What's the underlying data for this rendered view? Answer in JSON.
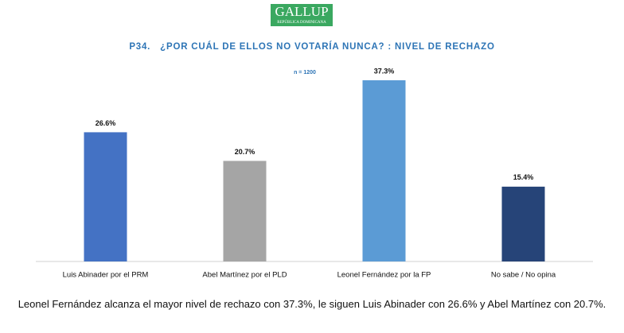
{
  "header": {
    "logo": "GALLUP",
    "logo_subtitle": "REPÚBLICA DOMINICANA"
  },
  "chart_data": {
    "type": "bar",
    "title": "P34.   ¿POR CUÁL DE ELLOS NO VOTARÍA NUNCA? : NIVEL DE RECHAZO",
    "annotation": "n = 1200",
    "categories": [
      "Luis Abinader por el PRM",
      "Abel Martínez por el PLD",
      "Leonel Fernández por la FP",
      "No sabe / No opina"
    ],
    "values": [
      26.6,
      20.7,
      37.3,
      15.4
    ],
    "value_labels": [
      "26.6%",
      "20.7%",
      "37.3%",
      "15.4%"
    ],
    "colors": [
      "#4472c4",
      "#a5a5a5",
      "#5b9bd5",
      "#264478"
    ]
  },
  "caption": "Leonel Fernández alcanza el mayor nivel de rechazo con 37.3%, le siguen Luis Abinader con 26.6% y Abel Martínez con 20.7%."
}
